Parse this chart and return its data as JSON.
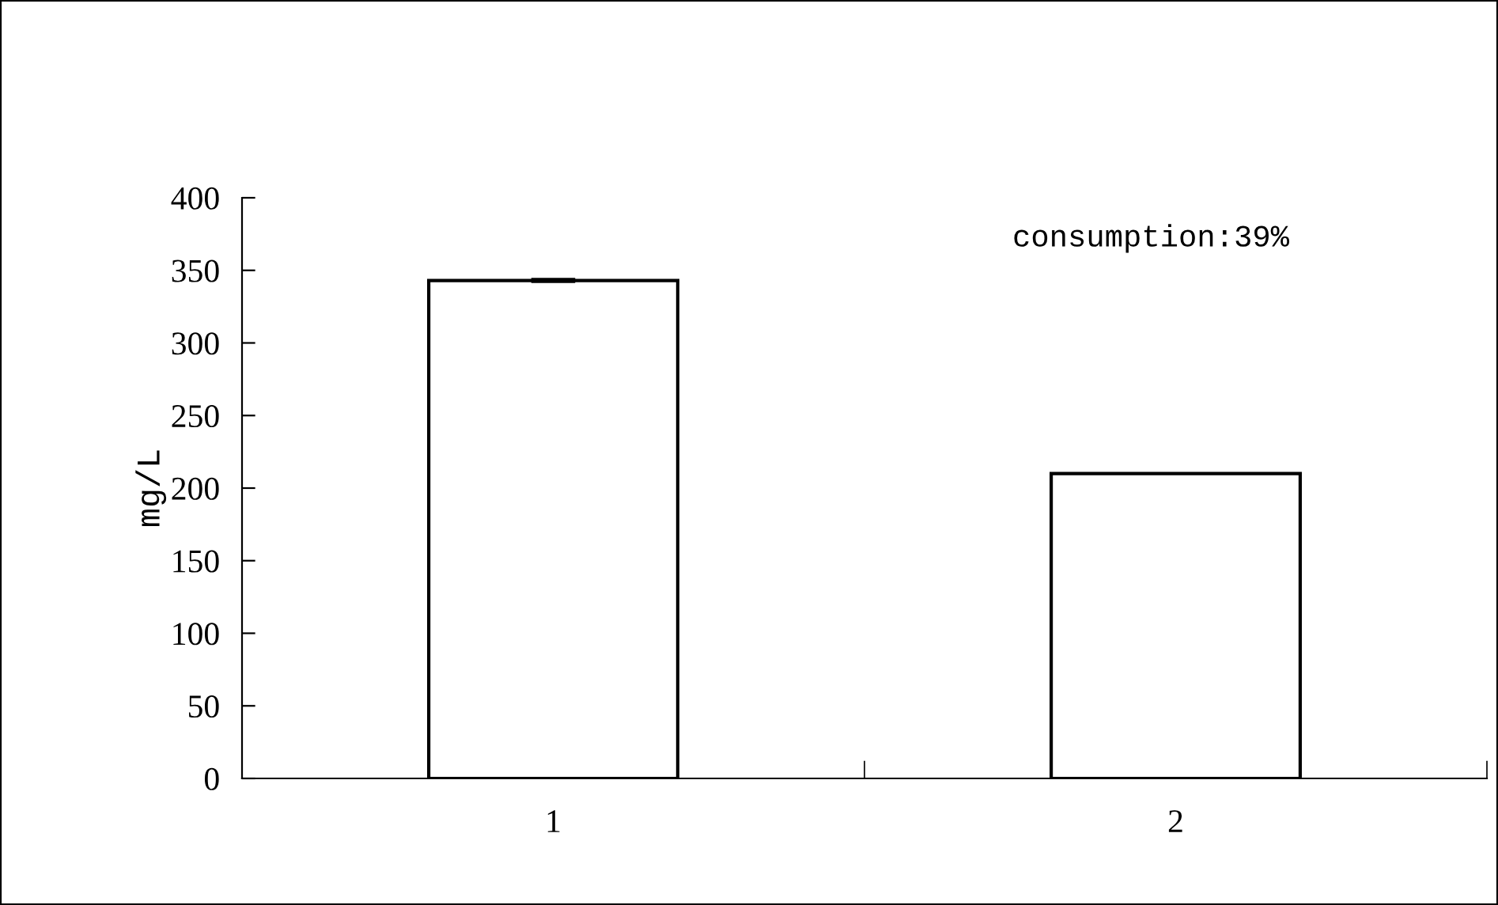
{
  "chart_data": {
    "type": "bar",
    "categories": [
      "1",
      "2"
    ],
    "values": [
      343,
      210
    ],
    "errors": [
      1,
      null
    ],
    "color": "#ffffff",
    "ylabel": "mg/L",
    "ylim": [
      0,
      400
    ],
    "yticks": [
      0,
      50,
      100,
      150,
      200,
      250,
      300,
      350,
      400
    ],
    "grid": false,
    "legend": false,
    "annotations": [
      "consumption:39%"
    ]
  }
}
